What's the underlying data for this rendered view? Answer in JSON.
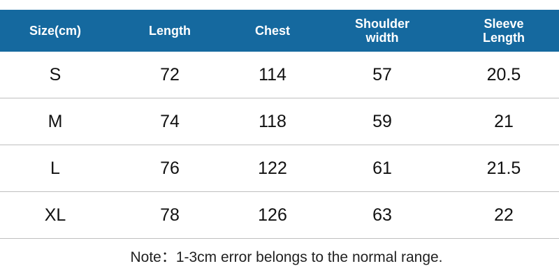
{
  "table": {
    "header": [
      "Size(cm)",
      "Length",
      "Chest",
      "Shoulder\nwidth",
      "Sleeve\nLength"
    ],
    "rows": [
      [
        "S",
        72,
        114,
        57,
        20.5
      ],
      [
        "M",
        74,
        118,
        59,
        21
      ],
      [
        "L",
        76,
        122,
        61,
        21.5
      ],
      [
        "XL",
        78,
        126,
        63,
        22
      ]
    ]
  },
  "note": "Note：1-3cm error belongs to the normal range."
}
